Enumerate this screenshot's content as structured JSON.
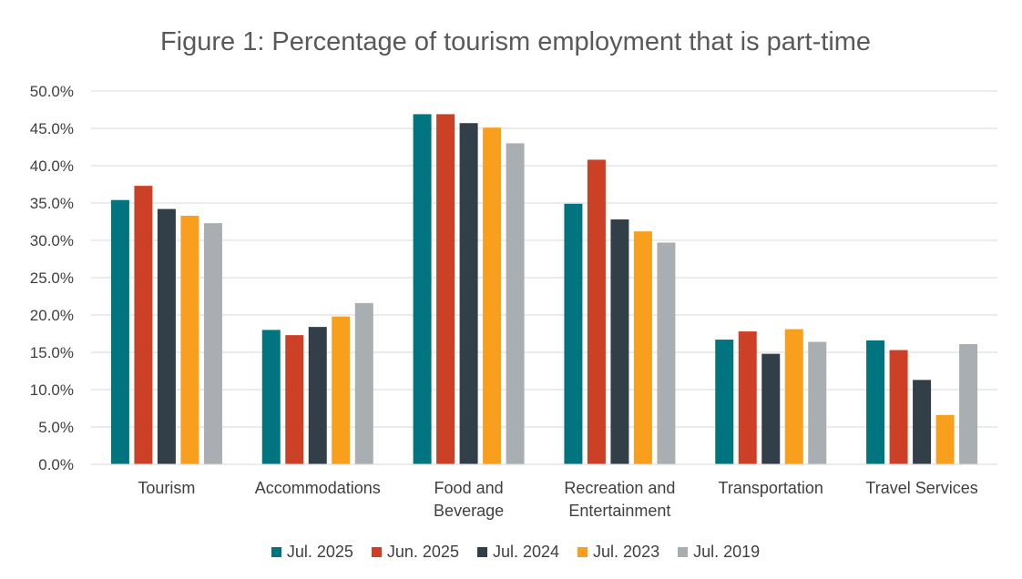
{
  "chart_data": {
    "type": "bar",
    "title": "Figure 1: Percentage of tourism employment that is part-time",
    "categories": [
      "Tourism",
      "Accommodations",
      "Food and Beverage",
      "Recreation and Entertainment",
      "Transportation",
      "Travel Services"
    ],
    "category_lines": [
      [
        "Tourism"
      ],
      [
        "Accommodations"
      ],
      [
        "Food and",
        "Beverage"
      ],
      [
        "Recreation and",
        "Entertainment"
      ],
      [
        "Transportation"
      ],
      [
        "Travel Services"
      ]
    ],
    "series": [
      {
        "name": "Jul. 2025",
        "color": "#00757F",
        "values": [
          35.4,
          18.0,
          46.9,
          34.9,
          16.7,
          16.6
        ]
      },
      {
        "name": "Jun. 2025",
        "color": "#CC4125",
        "values": [
          37.3,
          17.3,
          46.9,
          40.8,
          17.8,
          15.3
        ]
      },
      {
        "name": "Jul. 2024",
        "color": "#333F48",
        "values": [
          34.2,
          18.4,
          45.7,
          32.8,
          14.8,
          11.3
        ]
      },
      {
        "name": "Jul. 2023",
        "color": "#F99F1E",
        "values": [
          33.3,
          19.8,
          45.1,
          31.2,
          18.1,
          6.6
        ]
      },
      {
        "name": "Jul. 2019",
        "color": "#A9AEB2",
        "values": [
          32.3,
          21.6,
          43.0,
          29.7,
          16.4,
          16.1
        ]
      }
    ],
    "yticks": [
      "0.0%",
      "5.0%",
      "10.0%",
      "15.0%",
      "20.0%",
      "25.0%",
      "30.0%",
      "35.0%",
      "40.0%",
      "45.0%",
      "50.0%"
    ],
    "ylim": [
      0,
      50
    ],
    "ytick_step": 5,
    "xlabel": "",
    "ylabel": "",
    "grid": true,
    "legend_position": "bottom"
  }
}
